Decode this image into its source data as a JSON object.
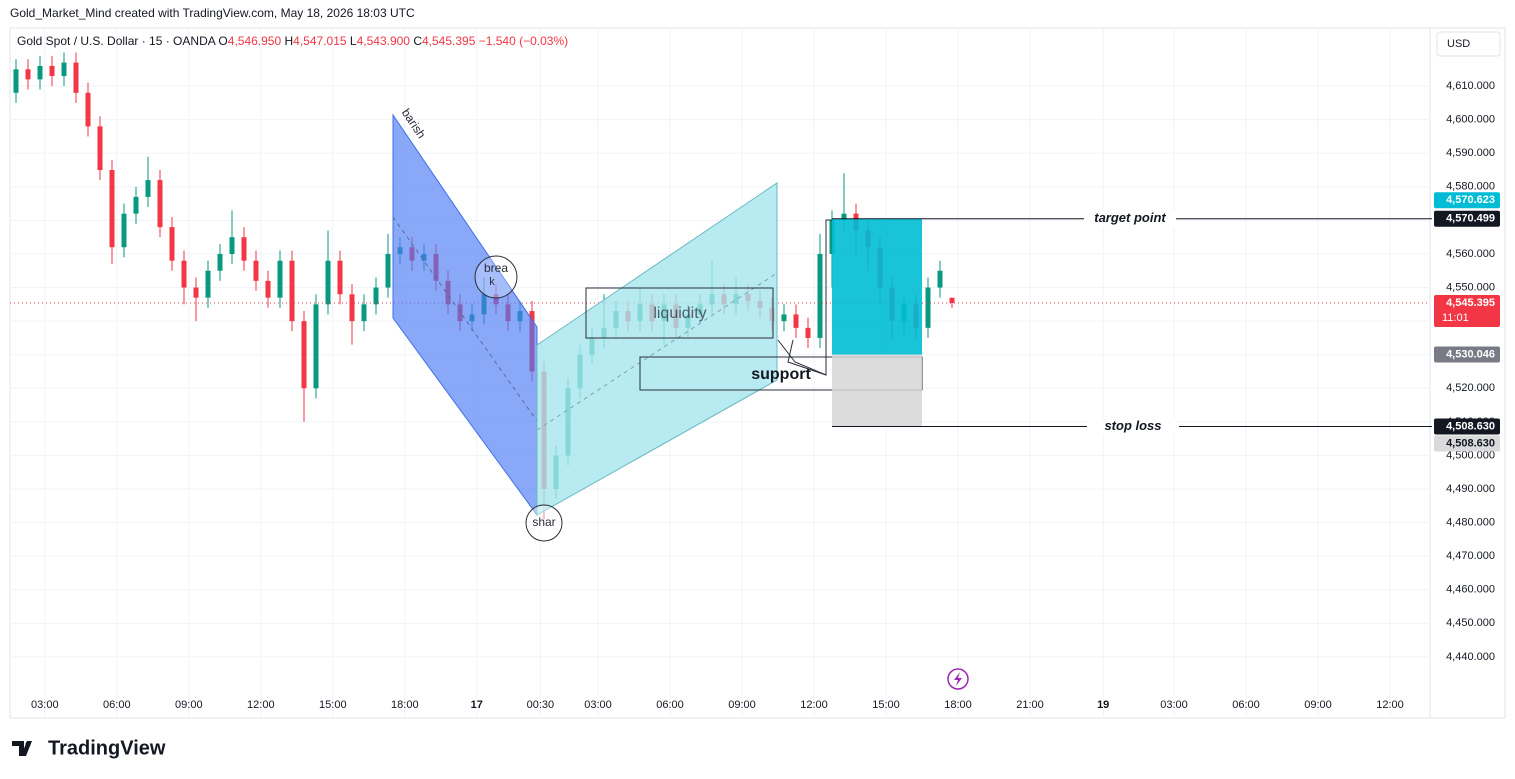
{
  "header": {
    "credit": "Gold_Market_Mind created with TradingView.com, May 18, 2026 18:03 UTC",
    "currency": "USD",
    "logo": "TradingView"
  },
  "chart_data": {
    "type": "candlestick",
    "legend": {
      "symbol": "Gold Spot / U.S. Dollar · 15 · OANDA",
      "open_key": "O",
      "open": "4,546.950",
      "high_key": "H",
      "high": "4,547.015",
      "low_key": "L",
      "low": "4,543.900",
      "close_key": "C",
      "close": "4,545.395",
      "change": "−1.540 (−0.03%)"
    },
    "up_color": "#089981",
    "down_color": "#f23645",
    "grid": true,
    "open": [
      4608,
      4615,
      4612,
      4616,
      4613,
      4617,
      4608,
      4598,
      4585,
      4562,
      4572,
      4577,
      4582,
      4568,
      4558,
      4550,
      4547,
      4555,
      4560,
      4565,
      4558,
      4552,
      4547,
      4558,
      4540,
      4520,
      4545,
      4558,
      4548,
      4540,
      4545,
      4550,
      4560,
      4562,
      4558,
      4560,
      4552,
      4545,
      4540,
      4542,
      4548,
      4545,
      4540,
      4543,
      4525,
      4490,
      4500,
      4520,
      4530,
      4535,
      4538,
      4543,
      4540,
      4545,
      4540,
      4545,
      4538,
      4542,
      4545,
      4548,
      4545,
      4548,
      4546,
      4544,
      4540,
      4542,
      4538,
      4535,
      4560,
      4570,
      4572,
      4567,
      4562,
      4550,
      4540,
      4545,
      4538,
      4550,
      4546.95
    ],
    "high": [
      4618,
      4618,
      4619,
      4619,
      4620,
      4620,
      4611,
      4601,
      4588,
      4575,
      4580,
      4589,
      4585,
      4571,
      4561,
      4553,
      4558,
      4563,
      4573,
      4568,
      4561,
      4555,
      4561,
      4561,
      4543,
      4548,
      4567,
      4561,
      4551,
      4548,
      4553,
      4566,
      4565,
      4565,
      4563,
      4563,
      4555,
      4548,
      4545,
      4553,
      4551,
      4548,
      4546,
      4546,
      4528,
      4503,
      4523,
      4533,
      4538,
      4548,
      4546,
      4546,
      4550,
      4548,
      4548,
      4548,
      4545,
      4548,
      4558,
      4551,
      4553,
      4551,
      4549,
      4547,
      4545,
      4545,
      4541,
      4566,
      4573,
      4584,
      4575,
      4570,
      4565,
      4553,
      4548,
      4548,
      4553,
      4558,
      4547.015
    ],
    "low": [
      4605,
      4609,
      4609,
      4610,
      4610,
      4605,
      4595,
      4582,
      4557,
      4559,
      4569,
      4574,
      4565,
      4555,
      4545,
      4540,
      4544,
      4552,
      4557,
      4555,
      4549,
      4544,
      4544,
      4537,
      4510,
      4517,
      4542,
      4545,
      4533,
      4537,
      4542,
      4547,
      4557,
      4555,
      4555,
      4549,
      4542,
      4537,
      4537,
      4539,
      4542,
      4537,
      4537,
      4522,
      4481,
      4487,
      4497,
      4517,
      4527,
      4532,
      4535,
      4537,
      4537,
      4537,
      4533,
      4535,
      4535,
      4539,
      4542,
      4542,
      4542,
      4543,
      4541,
      4537,
      4537,
      4535,
      4532,
      4532,
      4550,
      4567,
      4560,
      4555,
      4545,
      4535,
      4535,
      4535,
      4535,
      4547,
      4543.9
    ],
    "close": [
      4615,
      4612,
      4616,
      4613,
      4617,
      4608,
      4598,
      4585,
      4562,
      4572,
      4577,
      4582,
      4568,
      4558,
      4550,
      4547,
      4555,
      4560,
      4565,
      4558,
      4552,
      4547,
      4558,
      4540,
      4520,
      4545,
      4558,
      4548,
      4540,
      4545,
      4550,
      4560,
      4562,
      4558,
      4560,
      4552,
      4545,
      4540,
      4542,
      4548,
      4545,
      4540,
      4543,
      4525,
      4490,
      4500,
      4520,
      4530,
      4535,
      4538,
      4543,
      4540,
      4545,
      4540,
      4545,
      4538,
      4542,
      4545,
      4548,
      4545,
      4548,
      4546,
      4544,
      4540,
      4542,
      4538,
      4535,
      4560,
      4570,
      4572,
      4567,
      4562,
      4550,
      4540,
      4545,
      4538,
      4550,
      4555,
      4545.395
    ],
    "xlim": [
      0,
      118
    ],
    "xticks": [
      {
        "value": 2.9,
        "label": "03:00"
      },
      {
        "value": 8.9,
        "label": "06:00"
      },
      {
        "value": 14.9,
        "label": "09:00"
      },
      {
        "value": 20.9,
        "label": "12:00"
      },
      {
        "value": 26.9,
        "label": "15:00"
      },
      {
        "value": 32.9,
        "label": "18:00"
      },
      {
        "value": 38.9,
        "label": "17"
      },
      {
        "value": 44.2,
        "label": "00:30"
      },
      {
        "value": 49,
        "label": "03:00"
      },
      {
        "value": 55,
        "label": "06:00"
      },
      {
        "value": 61,
        "label": "09:00"
      },
      {
        "value": 67,
        "label": "12:00"
      },
      {
        "value": 73,
        "label": "15:00"
      },
      {
        "value": 79,
        "label": "18:00"
      },
      {
        "value": 85,
        "label": "21:00"
      },
      {
        "value": 91.1,
        "label": "19"
      },
      {
        "value": 97,
        "label": "03:00"
      },
      {
        "value": 103,
        "label": "06:00"
      },
      {
        "value": 109,
        "label": "09:00"
      },
      {
        "value": 115,
        "label": "12:00"
      }
    ],
    "ylim": [
      4421.8,
      4627.3
    ],
    "yticks": [
      {
        "value": 4440,
        "label": "4,440.000"
      },
      {
        "value": 4450,
        "label": "4,450.000"
      },
      {
        "value": 4460,
        "label": "4,460.000"
      },
      {
        "value": 4470,
        "label": "4,470.000"
      },
      {
        "value": 4480,
        "label": "4,480.000"
      },
      {
        "value": 4490,
        "label": "4,490.000"
      },
      {
        "value": 4500,
        "label": "4,500.000"
      },
      {
        "value": 4510,
        "label": "4,510.000"
      },
      {
        "value": 4520,
        "label": "4,520.000"
      },
      {
        "value": 4530,
        "label": "4,530.000"
      },
      {
        "value": 4540,
        "label": "4,540.000"
      },
      {
        "value": 4550,
        "label": "4,550.000"
      },
      {
        "value": 4560,
        "label": "4,560.000"
      },
      {
        "value": 4570,
        "label": "4,570.000"
      },
      {
        "value": 4580,
        "label": "4,580.000"
      },
      {
        "value": 4590,
        "label": "4,590.000"
      },
      {
        "value": 4600,
        "label": "4,600.000"
      },
      {
        "value": 4610,
        "label": "4,610.000"
      }
    ],
    "price_labels": [
      {
        "value": 4570.623,
        "label": "4,570.623",
        "color": "#00bcd4"
      },
      {
        "value": 4570.499,
        "label": "4,570.499",
        "color": "#131722"
      },
      {
        "value": 4545.395,
        "label": "4,545.395",
        "color": "#f23645",
        "countdown": "11:01"
      },
      {
        "value": 4530.046,
        "label": "4,530.046",
        "color": "#787b86"
      },
      {
        "value": 4508.63,
        "label": "4,508.630",
        "color": "#131722"
      },
      {
        "value": 4508.63,
        "label": "4,508.630",
        "color": "#dadada"
      }
    ],
    "annotations": {
      "bearish": "barish",
      "break": "brea",
      "break_tail": "k",
      "sharp": "shar",
      "liquidity": "liquidity",
      "support": "support",
      "target": "target point",
      "stop": "stop loss"
    }
  }
}
